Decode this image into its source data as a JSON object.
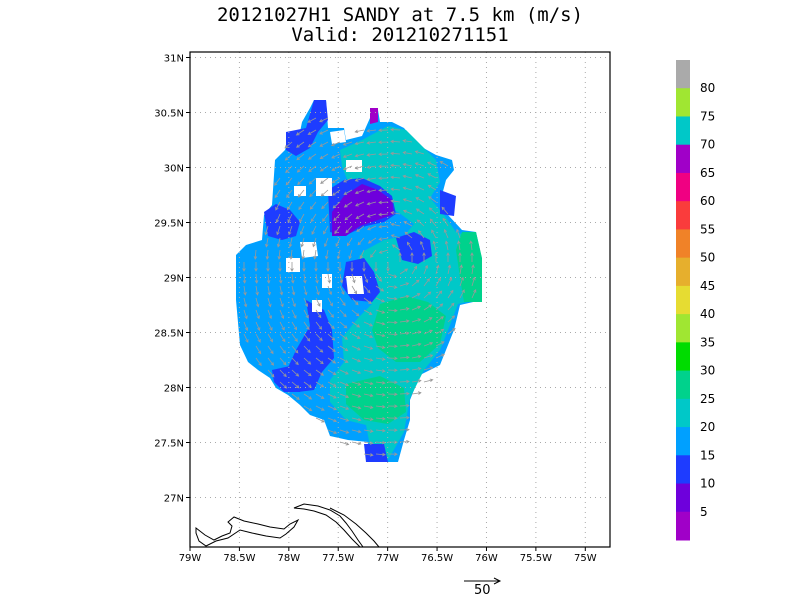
{
  "title": {
    "line1": "20121027H1 SANDY at 7.5 km (m/s)",
    "line2": "Valid: 201210271151"
  },
  "axes": {
    "y_ticks": [
      {
        "value": 31,
        "label": "31N"
      },
      {
        "value": 30.5,
        "label": "30.5N"
      },
      {
        "value": 30,
        "label": "30N"
      },
      {
        "value": 29.5,
        "label": "29.5N"
      },
      {
        "value": 29,
        "label": "29N"
      },
      {
        "value": 28.5,
        "label": "28.5N"
      },
      {
        "value": 28,
        "label": "28N"
      },
      {
        "value": 27.5,
        "label": "27.5N"
      },
      {
        "value": 27,
        "label": "27N"
      }
    ],
    "x_ticks": [
      {
        "value": -79,
        "label": "79W"
      },
      {
        "value": -78.5,
        "label": "78.5W"
      },
      {
        "value": -78,
        "label": "78W"
      },
      {
        "value": -77.5,
        "label": "77.5W"
      },
      {
        "value": -77,
        "label": "77W"
      },
      {
        "value": -76.5,
        "label": "76.5W"
      },
      {
        "value": -76,
        "label": "76W"
      },
      {
        "value": -75.5,
        "label": "75.5W"
      },
      {
        "value": -75,
        "label": "75W"
      }
    ],
    "lon_range": [
      -79,
      -74.75
    ],
    "lat_range": [
      26.55,
      31.05
    ]
  },
  "colorbar": {
    "labels": [
      "5",
      "10",
      "15",
      "20",
      "25",
      "30",
      "35",
      "40",
      "45",
      "50",
      "55",
      "60",
      "65",
      "70",
      "75",
      "80"
    ],
    "colors": [
      "#a000c8",
      "#6e00dc",
      "#1e3cff",
      "#00a0ff",
      "#00c8c8",
      "#00d28c",
      "#00dc00",
      "#a0e632",
      "#e6dc32",
      "#e6af2d",
      "#f08228",
      "#fa3c3c",
      "#f00082",
      "#a000c8",
      "#00c8c8",
      "#a0e632",
      "#aaaaaa"
    ]
  },
  "reference_vector": {
    "label": "50"
  },
  "grid": true,
  "colors": {
    "grid": "#aaaaaa",
    "coast": "#000000",
    "wind_arrow": "#999999"
  }
}
